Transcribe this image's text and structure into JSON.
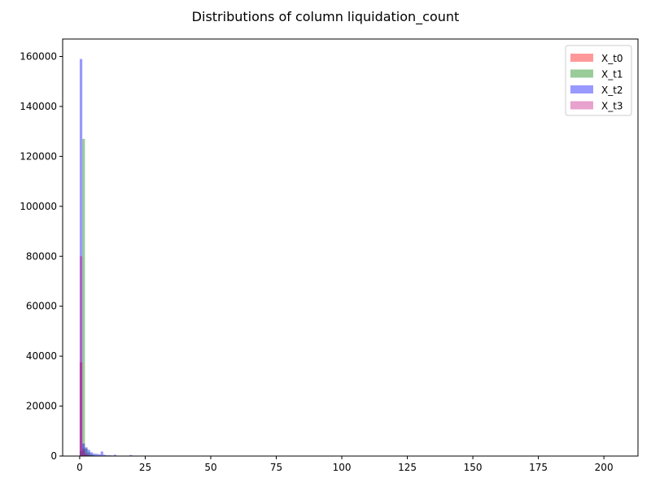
{
  "chart_data": {
    "type": "bar",
    "subtype": "histogram",
    "title": "Distributions of column liquidation_count",
    "xlabel": "",
    "ylabel": "",
    "xlim": [
      -6.5,
      213
    ],
    "ylim": [
      0,
      167000
    ],
    "xticks": [
      0,
      25,
      50,
      75,
      100,
      125,
      150,
      175,
      200
    ],
    "yticks": [
      0,
      20000,
      40000,
      60000,
      80000,
      100000,
      120000,
      140000,
      160000
    ],
    "grid": false,
    "legend_position": "upper right",
    "alpha": 0.4,
    "series": [
      {
        "name": "X_t0",
        "color": "#ff0000",
        "bins": [
          {
            "x0": 0.0,
            "x1": 1.0,
            "count": 37500
          },
          {
            "x0": 1.0,
            "x1": 2.0,
            "count": 3000
          },
          {
            "x0": 2.0,
            "x1": 3.0,
            "count": 900
          },
          {
            "x0": 3.0,
            "x1": 4.0,
            "count": 400
          },
          {
            "x0": 4.0,
            "x1": 5.0,
            "count": 200
          },
          {
            "x0": 112.5,
            "x1": 113.6,
            "count": 150
          },
          {
            "x0": 175.0,
            "x1": 176.1,
            "count": 100
          }
        ]
      },
      {
        "name": "X_t1",
        "color": "#008000",
        "bins": [
          {
            "x0": 0.0,
            "x1": 1.0,
            "count": 2000
          },
          {
            "x0": 1.0,
            "x1": 2.0,
            "count": 127000
          },
          {
            "x0": 2.0,
            "x1": 3.0,
            "count": 3000
          },
          {
            "x0": 3.0,
            "x1": 4.0,
            "count": 1500
          },
          {
            "x0": 4.0,
            "x1": 5.0,
            "count": 700
          },
          {
            "x0": 5.0,
            "x1": 6.0,
            "count": 300
          }
        ]
      },
      {
        "name": "X_t2",
        "color": "#0000ff",
        "bins": [
          {
            "x0": 0.0,
            "x1": 1.0,
            "count": 159000
          },
          {
            "x0": 1.0,
            "x1": 2.0,
            "count": 5000
          },
          {
            "x0": 2.0,
            "x1": 3.0,
            "count": 3500
          },
          {
            "x0": 3.0,
            "x1": 4.0,
            "count": 2500
          },
          {
            "x0": 4.0,
            "x1": 5.0,
            "count": 1500
          },
          {
            "x0": 5.0,
            "x1": 6.0,
            "count": 1000
          },
          {
            "x0": 6.0,
            "x1": 7.0,
            "count": 900
          },
          {
            "x0": 7.0,
            "x1": 8.0,
            "count": 700
          },
          {
            "x0": 8.0,
            "x1": 9.0,
            "count": 1800
          },
          {
            "x0": 9.0,
            "x1": 10.0,
            "count": 500
          },
          {
            "x0": 10.0,
            "x1": 11.0,
            "count": 300
          },
          {
            "x0": 11.0,
            "x1": 12.0,
            "count": 300
          },
          {
            "x0": 12.0,
            "x1": 13.0,
            "count": 200
          },
          {
            "x0": 13.0,
            "x1": 14.0,
            "count": 500
          },
          {
            "x0": 14.0,
            "x1": 15.0,
            "count": 150
          },
          {
            "x0": 19.0,
            "x1": 20.0,
            "count": 400
          },
          {
            "x0": 22.0,
            "x1": 23.0,
            "count": 150
          }
        ]
      },
      {
        "name": "X_t3",
        "color": "#c71585",
        "bins": [
          {
            "x0": 0.0,
            "x1": 1.0,
            "count": 80000
          },
          {
            "x0": 1.0,
            "x1": 2.0,
            "count": 2000
          },
          {
            "x0": 2.0,
            "x1": 3.0,
            "count": 600
          },
          {
            "x0": 3.0,
            "x1": 4.0,
            "count": 300
          }
        ]
      }
    ]
  }
}
